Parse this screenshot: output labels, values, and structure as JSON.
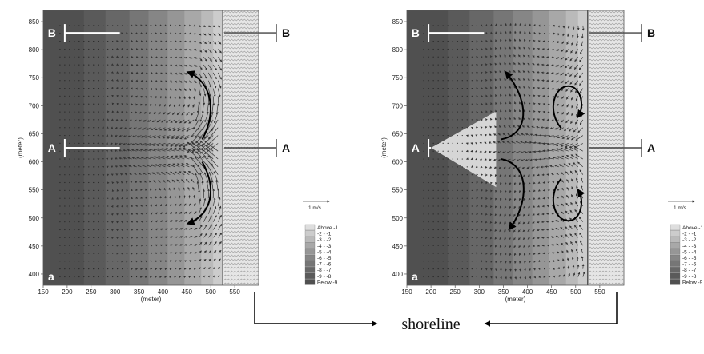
{
  "chart_data": [
    {
      "type": "heatmap",
      "panel_label": "a",
      "xlabel": "(meter)",
      "ylabel": "(meter)",
      "xlim": [
        150,
        600
      ],
      "ylim": [
        380,
        870
      ],
      "x_ticks": [
        "150",
        "200",
        "250",
        "300",
        "350",
        "400",
        "450",
        "500",
        "550"
      ],
      "y_ticks": [
        "400",
        "450",
        "500",
        "550",
        "600",
        "650",
        "700",
        "750",
        "800",
        "850"
      ],
      "grid": false,
      "section_lines": [
        {
          "label": "B",
          "y": 830
        },
        {
          "label": "A",
          "y": 625
        }
      ],
      "rip_channel": false,
      "circulation": "two counter-rotating cells diverging from rip current at shoreline",
      "scale_vector": "1 m/s",
      "legend_title": "",
      "legend": [
        "Above -1",
        "-2 - -1",
        "-3 - -2",
        "-4 - -3",
        "-5 - -4",
        "-6 - -5",
        "-7 - -6",
        "-8 - -7",
        "-9 - -8",
        "Below -9"
      ],
      "legend_position": "bottom-right",
      "shoreline_x": 525
    },
    {
      "type": "heatmap",
      "panel_label": "a",
      "xlabel": "(meter)",
      "ylabel": "(meter)",
      "xlim": [
        150,
        600
      ],
      "ylim": [
        380,
        870
      ],
      "x_ticks": [
        "150",
        "200",
        "250",
        "300",
        "350",
        "400",
        "450",
        "500",
        "550"
      ],
      "y_ticks": [
        "400",
        "450",
        "500",
        "550",
        "600",
        "650",
        "700",
        "750",
        "800",
        "850"
      ],
      "grid": false,
      "section_lines": [
        {
          "label": "B",
          "y": 830
        },
        {
          "label": "A",
          "y": 625
        }
      ],
      "rip_channel": true,
      "circulation": "rip current with two pairs of counter-rotating eddies",
      "scale_vector": "1 m/s",
      "legend_title": "",
      "legend": [
        "Above -1",
        "-2 - -1",
        "-3 - -2",
        "-4 - -3",
        "-5 - -4",
        "-6 - -5",
        "-7 - -6",
        "-8 - -7",
        "-9 - -8",
        "Below -9"
      ],
      "legend_position": "bottom-right",
      "shoreline_x": 525
    }
  ],
  "annotation": {
    "shoreline_label": "shoreline"
  },
  "colors": {
    "depth_bands": [
      "#505050",
      "#5a5a5a",
      "#676767",
      "#767676",
      "#868686",
      "#969696",
      "#a8a8a8",
      "#bababa",
      "#cccccc",
      "#dedede"
    ],
    "surf": "#e6e6e6",
    "arrow": "#333333",
    "curve": "#000000"
  }
}
